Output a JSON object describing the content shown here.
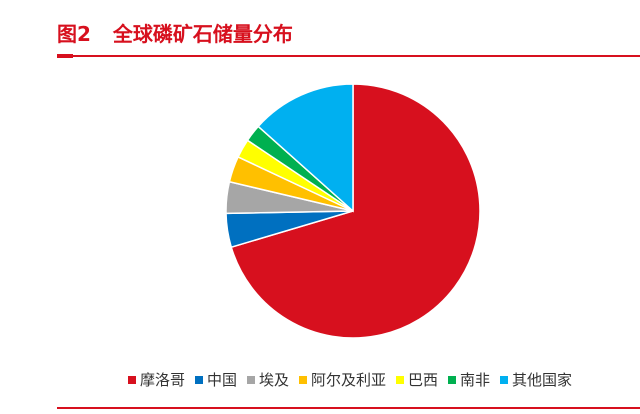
{
  "header": {
    "figure_label": "图2",
    "title": "全球磷矿石储量分布"
  },
  "chart_data": {
    "type": "pie",
    "categories": [
      "摩洛哥",
      "中国",
      "埃及",
      "阿尔及利亚",
      "巴西",
      "南非",
      "其他国家"
    ],
    "values": [
      70.4,
      4.3,
      4.0,
      3.3,
      2.4,
      2.2,
      13.4
    ],
    "colors": [
      "#d7101e",
      "#0070c0",
      "#a6a6a6",
      "#ffc000",
      "#ffff00",
      "#00b050",
      "#00b0f0"
    ],
    "start": "12 o'clock, clockwise",
    "legend_position": "bottom"
  }
}
